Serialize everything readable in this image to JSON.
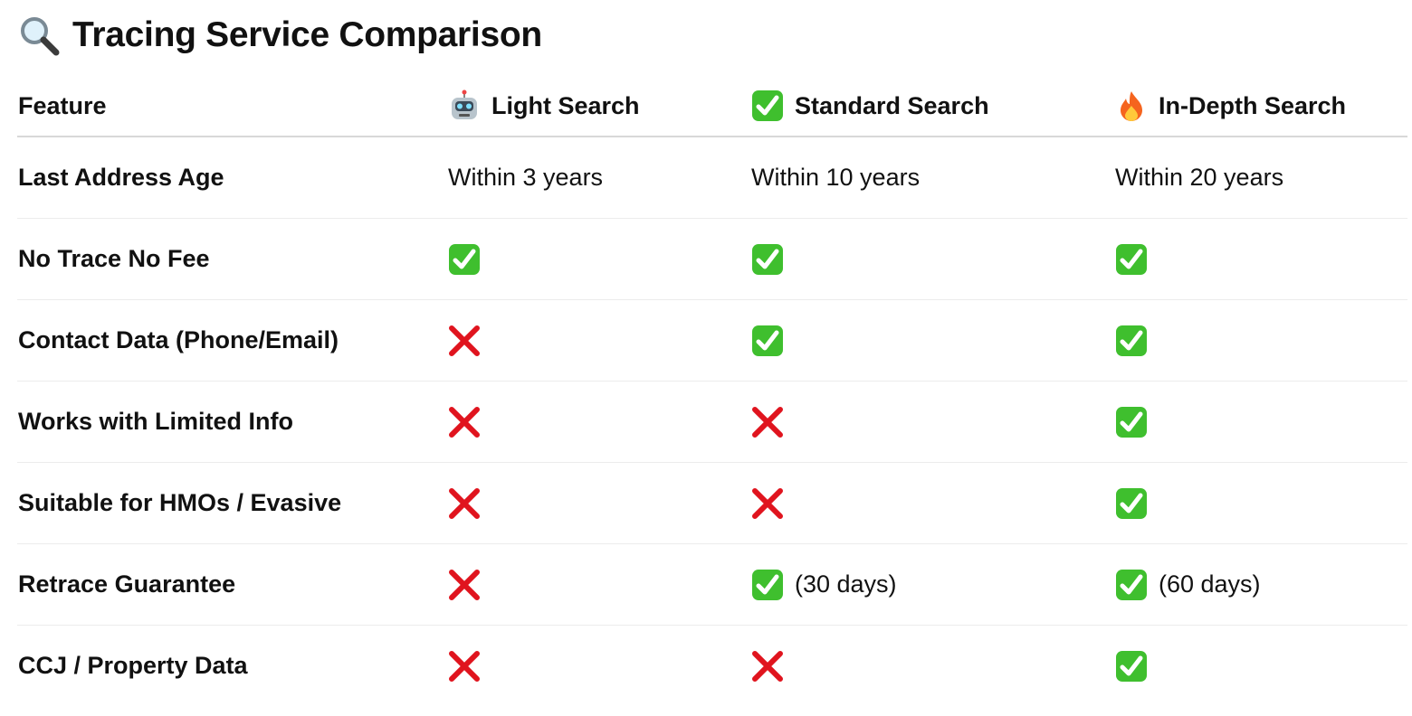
{
  "title": {
    "icon": "magnifying-glass-icon",
    "text": "Tracing Service Comparison"
  },
  "columns": [
    {
      "label": "Feature"
    },
    {
      "label": "Light Search",
      "icon": "robot-icon"
    },
    {
      "label": "Standard Search",
      "icon": "check-icon"
    },
    {
      "label": "In-Depth Search",
      "icon": "fire-icon"
    }
  ],
  "colors": {
    "check": "#3fbf2e",
    "cross": "#e0141e"
  },
  "rows": [
    {
      "feature": "Last Address Age",
      "cells": [
        {
          "text": "Within 3 years"
        },
        {
          "text": "Within 10 years"
        },
        {
          "text": "Within 20 years"
        }
      ]
    },
    {
      "feature": "No Trace No Fee",
      "cells": [
        {
          "icon": "check"
        },
        {
          "icon": "check"
        },
        {
          "icon": "check"
        }
      ]
    },
    {
      "feature": "Contact Data (Phone/Email)",
      "cells": [
        {
          "icon": "cross"
        },
        {
          "icon": "check"
        },
        {
          "icon": "check"
        }
      ]
    },
    {
      "feature": "Works with Limited Info",
      "cells": [
        {
          "icon": "cross"
        },
        {
          "icon": "cross"
        },
        {
          "icon": "check"
        }
      ]
    },
    {
      "feature": "Suitable for HMOs / Evasive",
      "cells": [
        {
          "icon": "cross"
        },
        {
          "icon": "cross"
        },
        {
          "icon": "check"
        }
      ]
    },
    {
      "feature": "Retrace Guarantee",
      "cells": [
        {
          "icon": "cross"
        },
        {
          "icon": "check",
          "text": "(30 days)"
        },
        {
          "icon": "check",
          "text": "(60 days)"
        }
      ]
    },
    {
      "feature": "CCJ / Property Data",
      "cells": [
        {
          "icon": "cross"
        },
        {
          "icon": "cross"
        },
        {
          "icon": "check"
        }
      ]
    }
  ]
}
